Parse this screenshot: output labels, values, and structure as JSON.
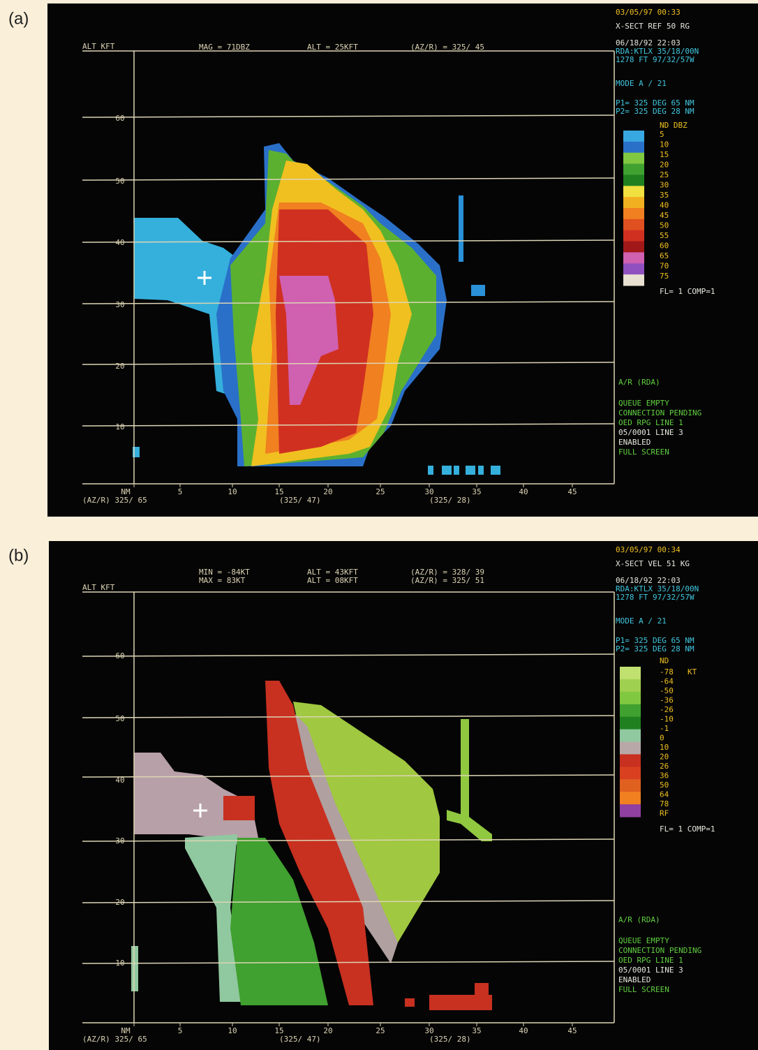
{
  "panels": [
    {
      "label": "(a)",
      "header": [
        [
          "MAG = 71DBZ",
          "ALT = 25KFT",
          "(AZ/R) = 325/ 45"
        ]
      ],
      "y_axis_title": "ALT KFT",
      "y_ticks": [
        "60",
        "50",
        "40",
        "30",
        "20",
        "10"
      ],
      "x_ticks": [
        "NM",
        "5",
        "10",
        "15",
        "20",
        "25",
        "30",
        "35",
        "40",
        "45"
      ],
      "x_footer": [
        "(AZ/R) 325/ 65",
        "(325/ 47)",
        "(325/ 28)"
      ],
      "info": [
        "03/05/97 00:33",
        "X-SECT REF 50 RG",
        "06/18/92 22:03",
        "RDA:KTLX 35/18/00N",
        "1278 FT 97/32/57W",
        "MODE A / 21",
        "P1= 325 DEG 65 NM",
        "P2= 325 DEG 28 NM"
      ],
      "legend_title": "ND  DBZ",
      "legend_labels": [
        "5",
        "10",
        "15",
        "20",
        "25",
        "30",
        "35",
        "40",
        "45",
        "50",
        "55",
        "60",
        "65",
        "70",
        "75"
      ],
      "legend_footer": "FL= 1 COMP=1",
      "status": [
        "A/R (RDA)",
        "QUEUE EMPTY",
        "CONNECTION PENDING",
        "OED  RPG LINE 1",
        "05/0001 LINE 3",
        "ENABLED",
        "FULL SCREEN"
      ]
    },
    {
      "label": "(b)",
      "header": [
        [
          "MIN = -84KT",
          "ALT = 43KFT",
          "(AZ/R) = 328/ 39"
        ],
        [
          "MAX = 83KT",
          "ALT = 08KFT",
          "(AZ/R) = 325/ 51"
        ]
      ],
      "y_axis_title": "ALT KFT",
      "y_ticks": [
        "60",
        "50",
        "40",
        "30",
        "20",
        "10"
      ],
      "x_ticks": [
        "NM",
        "5",
        "10",
        "15",
        "20",
        "25",
        "30",
        "35",
        "40",
        "45"
      ],
      "x_footer": [
        "(AZ/R) 325/ 65",
        "(325/ 47)",
        "(325/ 28)"
      ],
      "info": [
        "03/05/97 00:34",
        "X-SECT VEL 51 KG",
        "06/18/92 22:03",
        "RDA:KTLX 35/18/00N",
        "1278 FT 97/32/57W",
        "MODE A / 21",
        "P1= 325 DEG 65 NM",
        "P2= 325 DEG 28 NM"
      ],
      "legend_title": "ND",
      "legend_unit": "KT",
      "legend_labels": [
        "-78",
        "-64",
        "-50",
        "-36",
        "-26",
        "-10",
        "-1",
        "0",
        "10",
        "20",
        "26",
        "36",
        "50",
        "64",
        "78",
        "RF"
      ],
      "legend_footer": "FL= 1 COMP=1",
      "status": [
        "A/R (RDA)",
        "QUEUE EMPTY",
        "CONNECTION PENDING",
        "OED  RPG LINE 1",
        "05/0001 LINE 3",
        "ENABLED",
        "FULL SCREEN"
      ]
    }
  ]
}
